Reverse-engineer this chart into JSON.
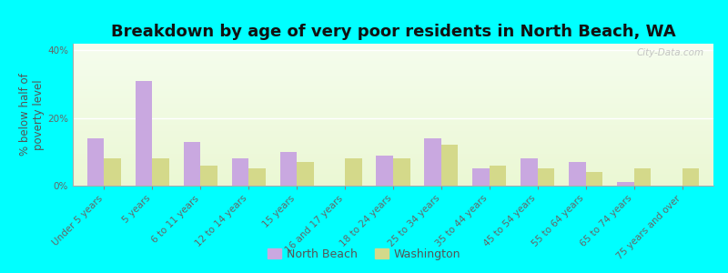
{
  "title": "Breakdown by age of very poor residents in North Beach, WA",
  "ylabel": "% below half of\npoverty level",
  "categories": [
    "Under 5 years",
    "5 years",
    "6 to 11 years",
    "12 to 14 years",
    "15 years",
    "16 and 17 years",
    "18 to 24 years",
    "25 to 34 years",
    "35 to 44 years",
    "45 to 54 years",
    "55 to 64 years",
    "65 to 74 years",
    "75 years and over"
  ],
  "north_beach": [
    14,
    31,
    13,
    8,
    10,
    0,
    9,
    14,
    5,
    8,
    7,
    1,
    0
  ],
  "washington": [
    8,
    8,
    6,
    5,
    7,
    8,
    8,
    12,
    6,
    5,
    4,
    5,
    5
  ],
  "north_beach_color": "#c9a8e0",
  "washington_color": "#d4d98a",
  "ylim": [
    0,
    42
  ],
  "ytick_labels": [
    "0%",
    "20%",
    "40%"
  ],
  "ytick_vals": [
    0,
    20,
    40
  ],
  "bar_width": 0.35,
  "outer_background": "#00ffff",
  "title_fontsize": 13,
  "axis_label_fontsize": 8.5,
  "tick_fontsize": 7.5,
  "legend_labels": [
    "North Beach",
    "Washington"
  ],
  "watermark": "City-Data.com"
}
